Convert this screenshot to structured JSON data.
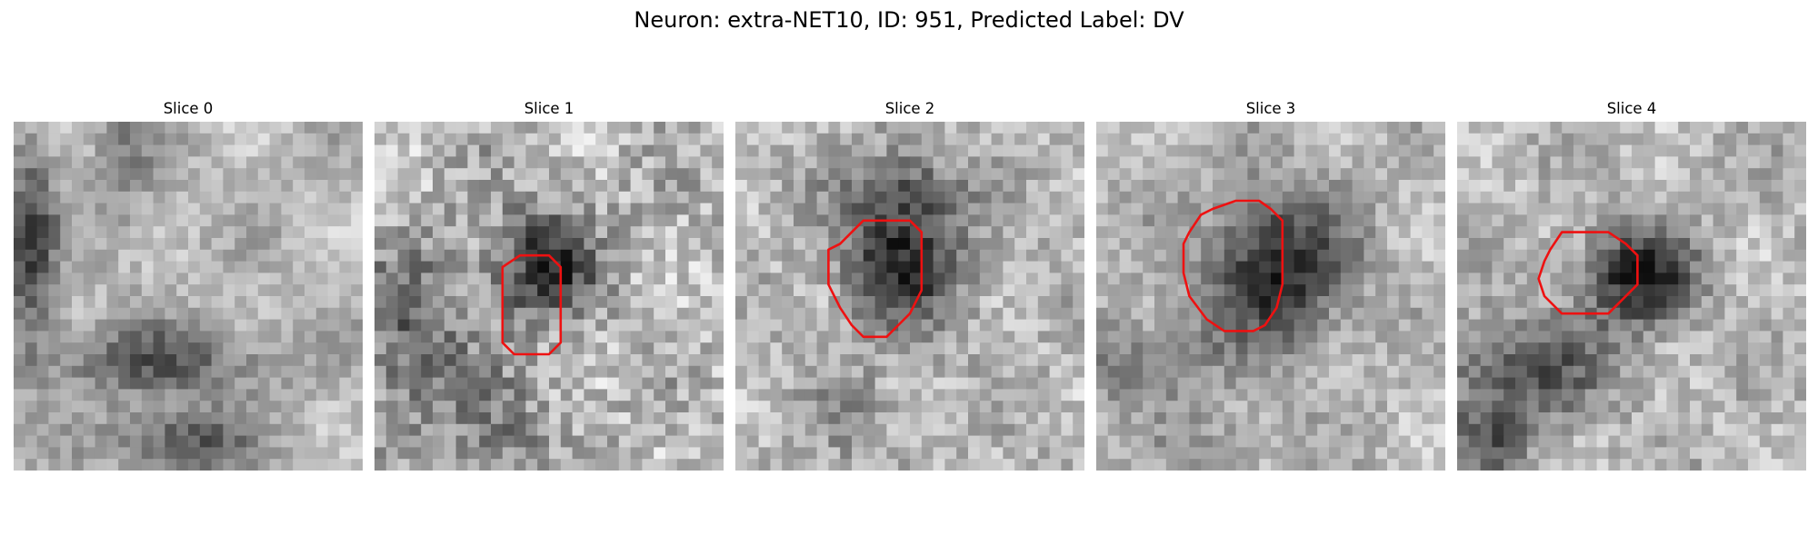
{
  "figure": {
    "title": "Neuron: extra-NET10, ID: 951, Predicted Label: DV"
  },
  "panels": [
    {
      "title": "Slice 0"
    },
    {
      "title": "Slice 1"
    },
    {
      "title": "Slice 2"
    },
    {
      "title": "Slice 3"
    },
    {
      "title": "Slice 4"
    }
  ],
  "colors": {
    "contour": "#ee1111",
    "background": "#ffffff"
  }
}
